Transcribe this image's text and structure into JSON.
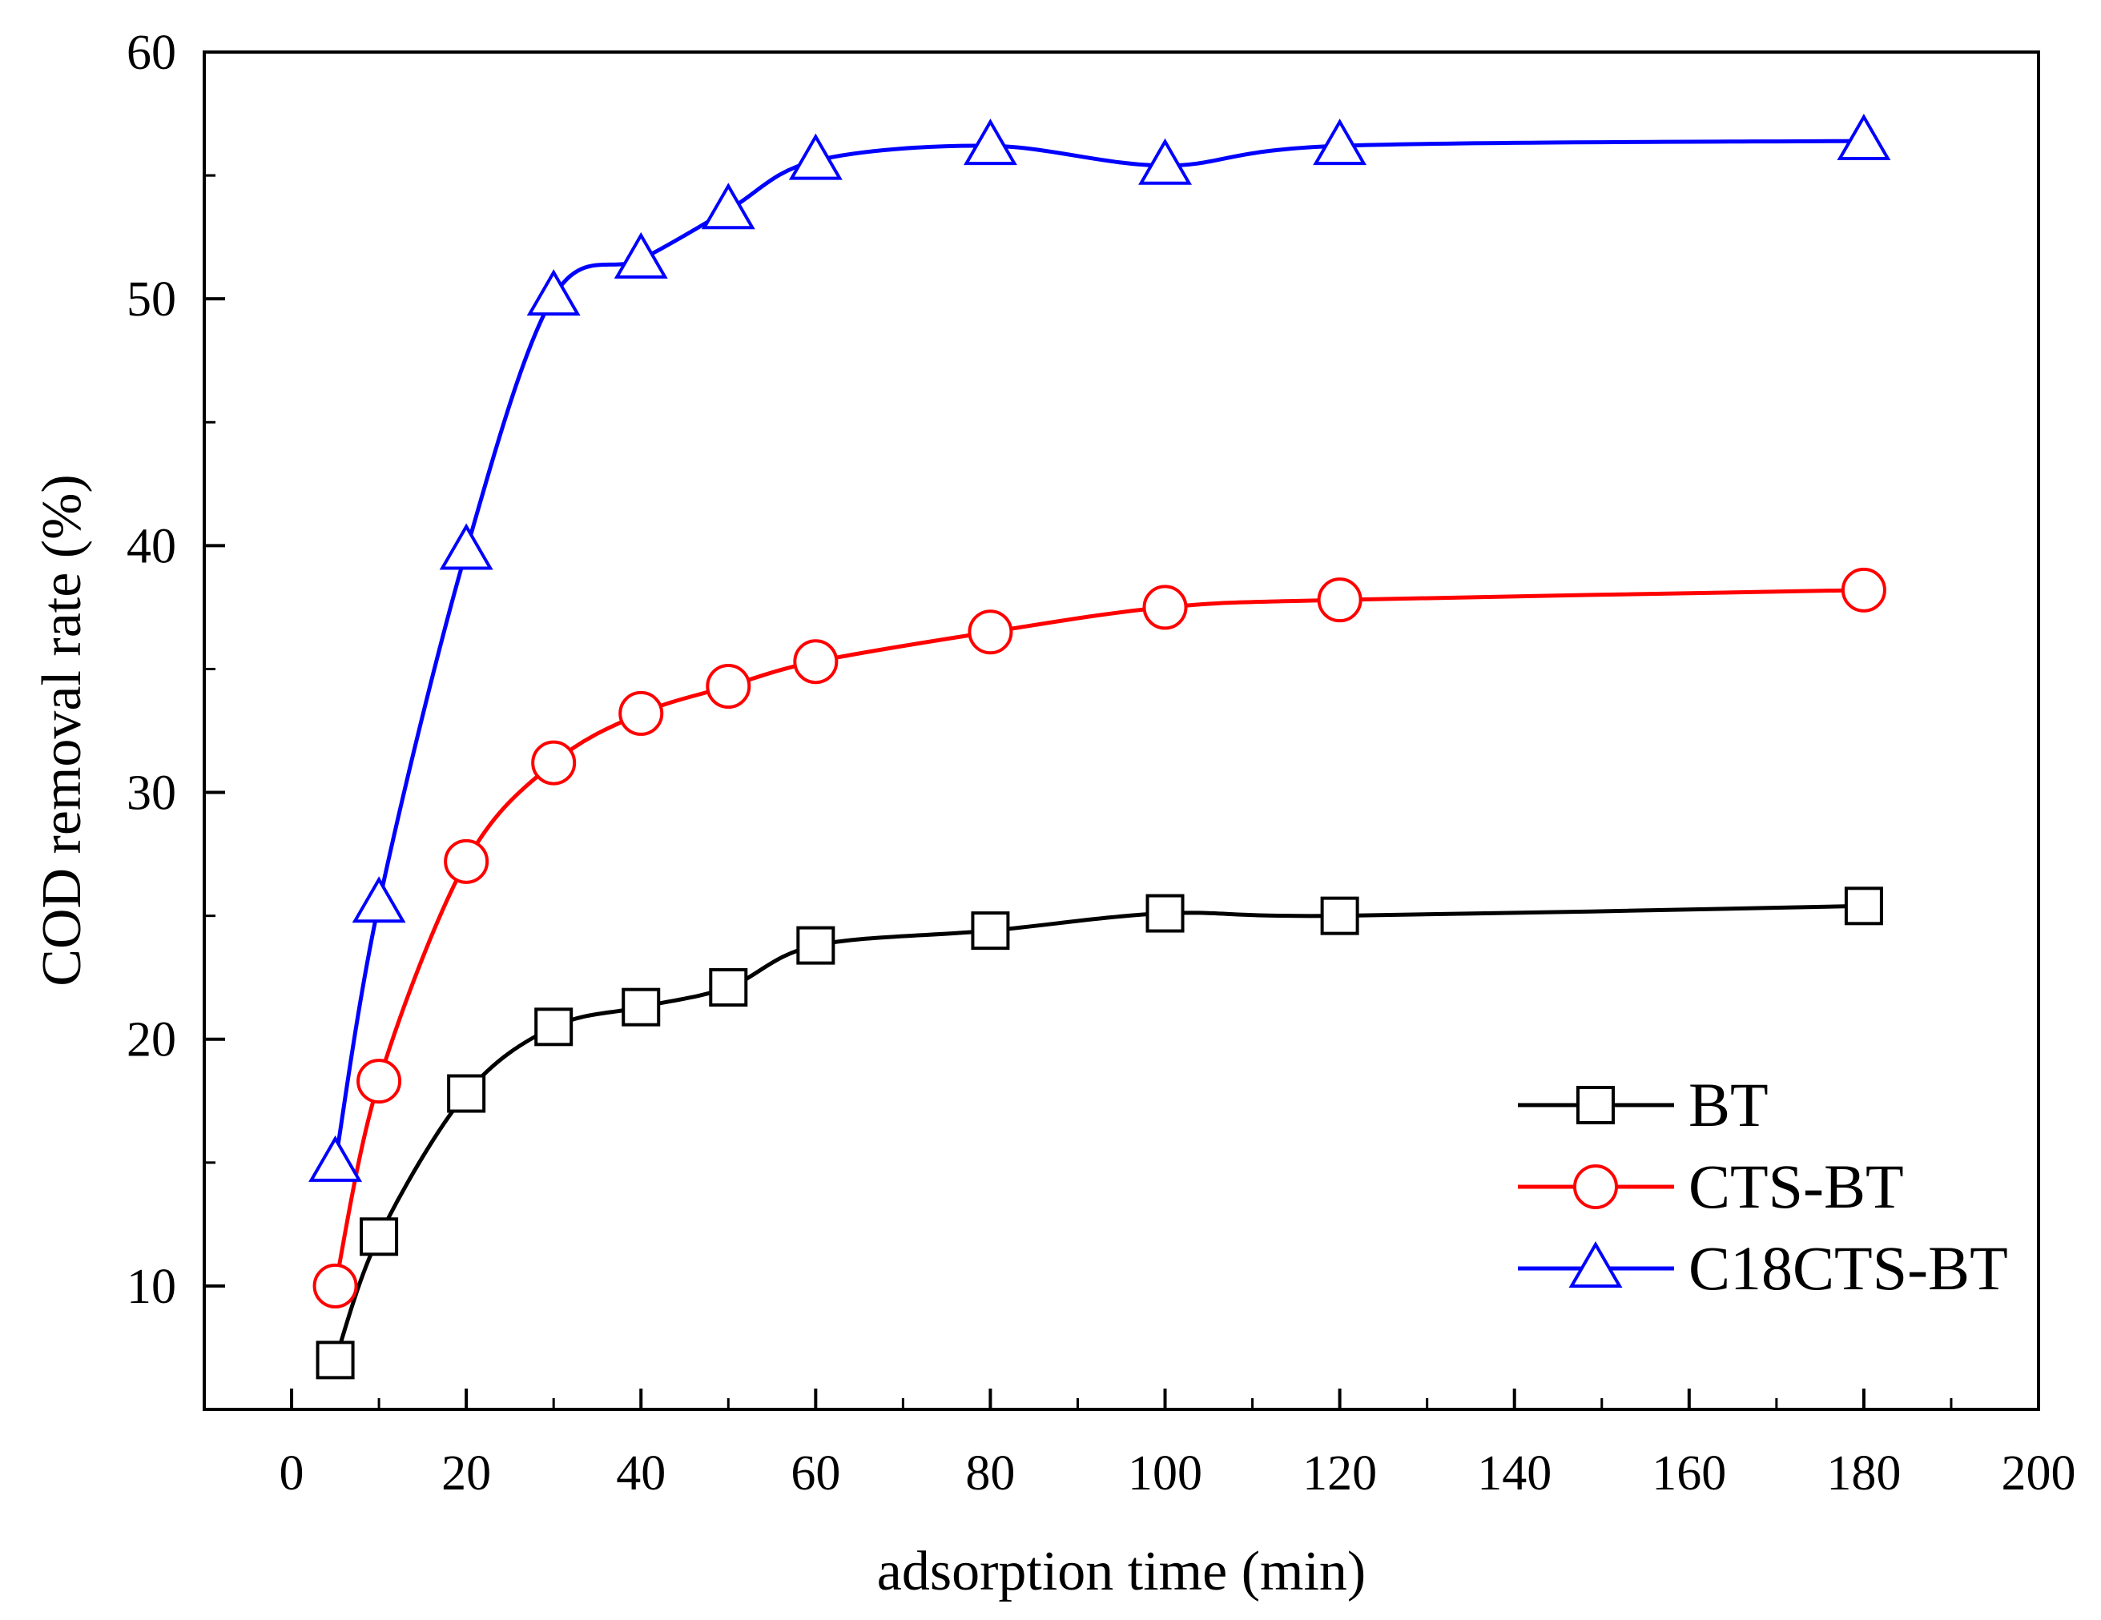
{
  "chart_data": {
    "type": "line",
    "title": "",
    "xlabel": "adsorption time (min)",
    "ylabel": "COD removal rate (%)",
    "xlim": [
      -10,
      200
    ],
    "ylim": [
      5,
      60
    ],
    "xticks": [
      0,
      20,
      40,
      60,
      80,
      100,
      120,
      140,
      160,
      180,
      200
    ],
    "yticks": [
      10,
      20,
      30,
      40,
      50,
      60
    ],
    "grid": false,
    "legend_position": "bottom-right",
    "x": [
      5,
      10,
      20,
      30,
      40,
      50,
      60,
      80,
      100,
      120,
      180
    ],
    "series": [
      {
        "name": "BT",
        "color": "#000000",
        "marker": "square",
        "values": [
          7.0,
          12.0,
          17.8,
          20.5,
          21.3,
          22.1,
          23.8,
          24.4,
          25.1,
          25.0,
          25.4
        ]
      },
      {
        "name": "CTS-BT",
        "color": "#ff0000",
        "marker": "circle",
        "values": [
          10.0,
          18.3,
          27.2,
          31.2,
          33.2,
          34.3,
          35.3,
          36.5,
          37.5,
          37.8,
          38.2
        ]
      },
      {
        "name": "C18CTS-BT",
        "color": "#0000ff",
        "marker": "triangle",
        "values": [
          15.0,
          25.5,
          39.8,
          50.1,
          51.6,
          53.6,
          55.6,
          56.2,
          55.4,
          56.2,
          56.4
        ]
      }
    ]
  }
}
